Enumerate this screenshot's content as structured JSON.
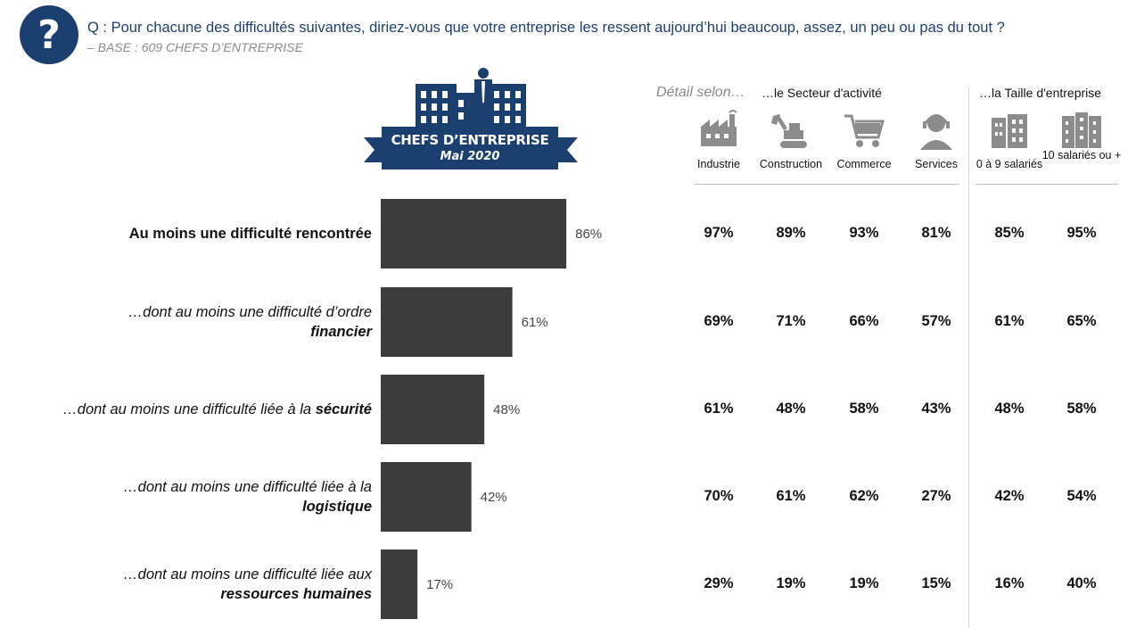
{
  "header": {
    "icon_glyph": "?",
    "question": "Q : Pour chacune des difficultés suivantes, diriez-vous que votre entreprise les ressent aujourd’hui beaucoup, assez, un peu ou pas du tout ?",
    "base": "– BASE : 609 CHEFS D’ENTREPRISE"
  },
  "badge": {
    "icon": "office-buildings-businessman-icon",
    "title": "CHEFS D’ENTREPRISE",
    "subtitle": "Mai 2020",
    "color": "#1b3f6e"
  },
  "chart_data": {
    "type": "bar",
    "orientation": "horizontal",
    "categories": [
      "Au moins une difficulté rencontrée",
      "…dont au moins une difficulté d’ordre financier",
      "…dont au moins une difficulté liée à la sécurité",
      "…dont au moins une difficulté liée à la logistique",
      "…dont au moins une difficulté liée aux ressources humaines"
    ],
    "values": [
      86,
      61,
      48,
      42,
      17
    ],
    "value_labels": [
      "86%",
      "61%",
      "48%",
      "42%",
      "17%"
    ],
    "unit": "%",
    "bar_color": "#3c3c3c",
    "xlim": [
      0,
      100
    ]
  },
  "row_labels": [
    {
      "line1": "Au moins une difficulté rencontrée",
      "line2": "",
      "style": "main"
    },
    {
      "line1": "…dont au moins une difficulté d’ordre",
      "line2": "financier",
      "style": "split"
    },
    {
      "line1": "…dont au moins une difficulté liée à la ",
      "line2": "sécurité",
      "style": "inline"
    },
    {
      "line1": "…dont au moins une difficulté liée à la",
      "line2": "logistique",
      "style": "split"
    },
    {
      "line1": "…dont au moins une difficulté liée aux",
      "line2": "ressources humaines",
      "style": "split"
    }
  ],
  "detail": {
    "prefix": "Détail selon…",
    "sector_heading": "…le Secteur d'activité",
    "size_heading": "…la Taille d'entreprise",
    "columns": [
      {
        "label": "Industrie",
        "icon": "factory-icon"
      },
      {
        "label": "Construction",
        "icon": "excavator-icon"
      },
      {
        "label": "Commerce",
        "icon": "shopping-cart-icon"
      },
      {
        "label": "Services",
        "icon": "customer-service-headset-icon"
      },
      {
        "label": "0 à 9 salariés",
        "icon": "small-building-icon"
      },
      {
        "label": "10 salariés ou +",
        "icon": "large-building-icon"
      }
    ],
    "rows": [
      [
        "97%",
        "89%",
        "93%",
        "81%",
        "85%",
        "95%"
      ],
      [
        "69%",
        "71%",
        "66%",
        "57%",
        "61%",
        "65%"
      ],
      [
        "61%",
        "48%",
        "58%",
        "43%",
        "48%",
        "58%"
      ],
      [
        "70%",
        "61%",
        "62%",
        "27%",
        "42%",
        "54%"
      ],
      [
        "29%",
        "19%",
        "19%",
        "15%",
        "16%",
        "40%"
      ]
    ],
    "icon_color": "#8c8c8c"
  }
}
